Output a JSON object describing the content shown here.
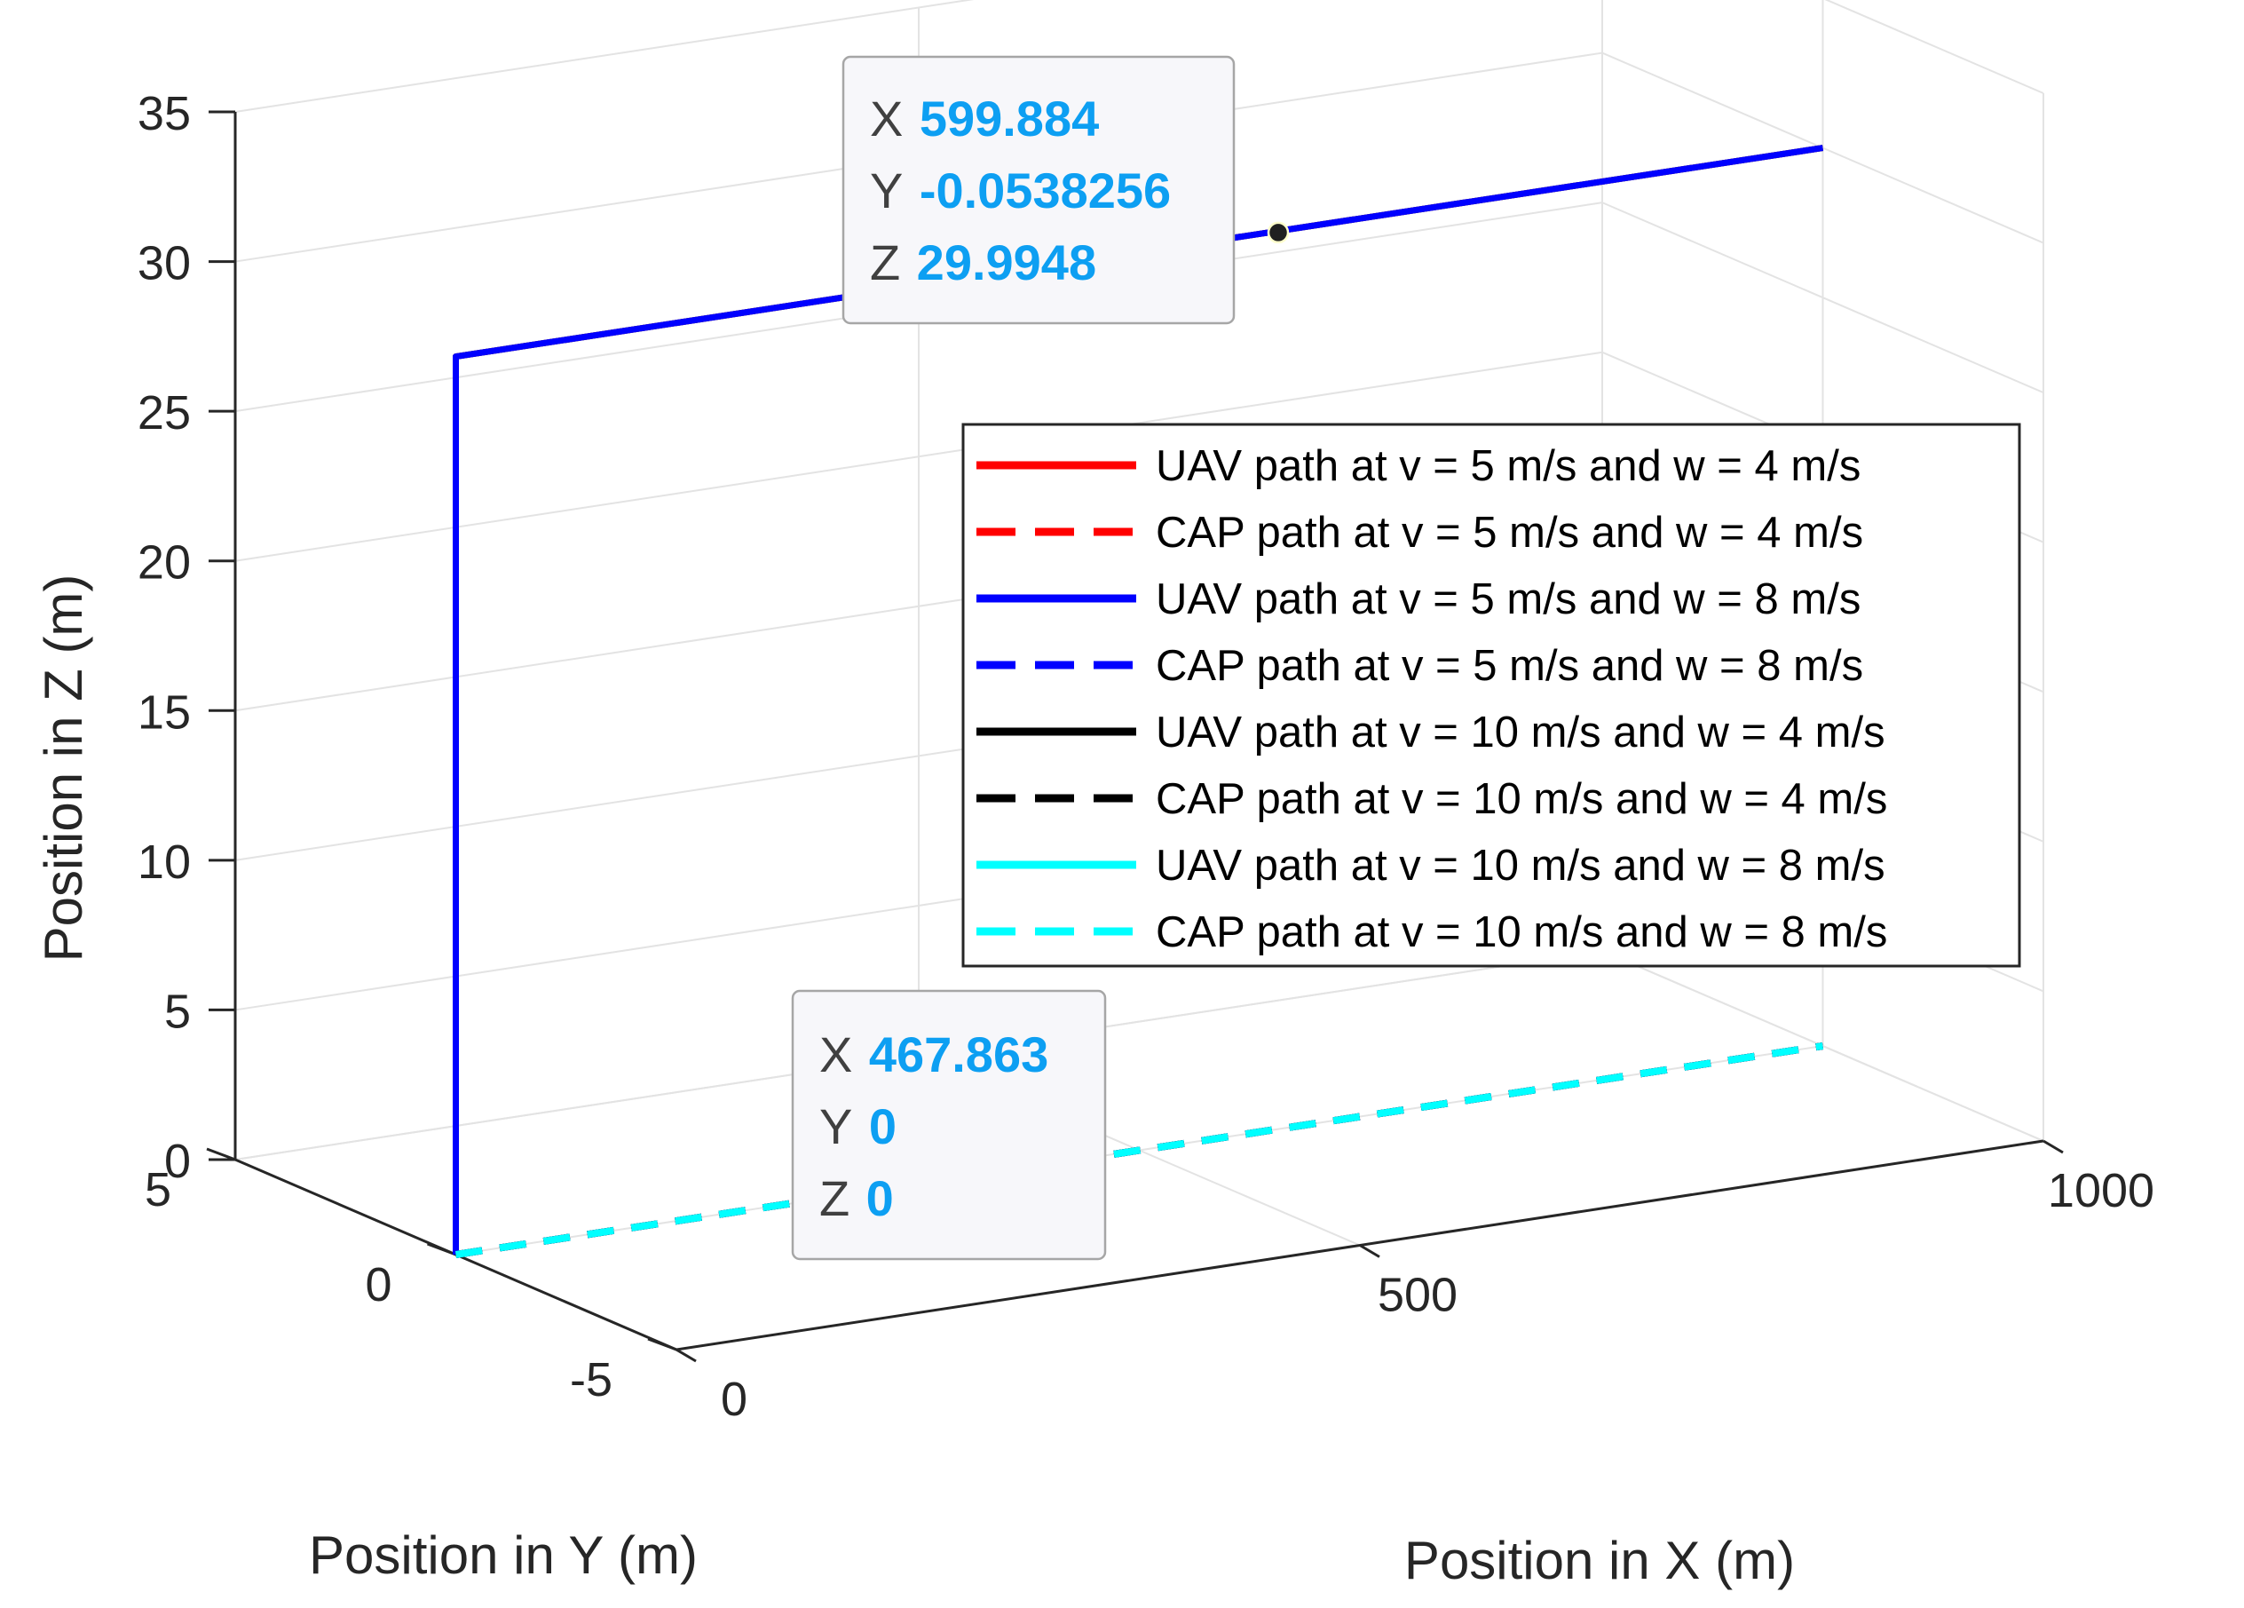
{
  "chart_data": {
    "type": "line3d",
    "xlabel": "Position in X (m)",
    "ylabel": "Position in Y (m)",
    "zlabel": "Position in Z (m)",
    "xlim": [
      0,
      1000
    ],
    "ylim": [
      -5,
      5
    ],
    "zlim": [
      0,
      35
    ],
    "xticks": [
      0,
      500,
      1000
    ],
    "yticks": [
      -5,
      0,
      5
    ],
    "zticks": [
      0,
      5,
      10,
      15,
      20,
      25,
      30,
      35
    ],
    "grid": true,
    "legend_position": "upper-right",
    "series": [
      {
        "name": "UAV path at v = 5 m/s and w = 4 m/s",
        "color": "#ff0000",
        "style": "solid",
        "points": [
          [
            0,
            0,
            0
          ],
          [
            0,
            0,
            30
          ],
          [
            1000,
            0,
            30
          ]
        ]
      },
      {
        "name": "CAP path at v = 5 m/s and w = 4 m/s",
        "color": "#ff0000",
        "style": "dashed",
        "points": [
          [
            0,
            0,
            0
          ],
          [
            1000,
            0,
            0
          ]
        ]
      },
      {
        "name": "UAV path at v = 5 m/s and w = 8 m/s",
        "color": "#0000ff",
        "style": "solid",
        "points": [
          [
            0,
            0,
            0
          ],
          [
            0,
            0,
            30
          ],
          [
            1000,
            0,
            30
          ]
        ]
      },
      {
        "name": "CAP path at v = 5 m/s and w = 8 m/s",
        "color": "#0000ff",
        "style": "dashed",
        "points": [
          [
            0,
            0,
            0
          ],
          [
            1000,
            0,
            0
          ]
        ]
      },
      {
        "name": "UAV path at v = 10 m/s and w = 4 m/s",
        "color": "#000000",
        "style": "solid",
        "points": [
          [
            0,
            0,
            0
          ],
          [
            0,
            0,
            30
          ],
          [
            1000,
            0,
            30
          ]
        ]
      },
      {
        "name": "CAP path at v = 10 m/s and w = 4 m/s",
        "color": "#000000",
        "style": "dashed",
        "points": [
          [
            0,
            0,
            0
          ],
          [
            1000,
            0,
            0
          ]
        ]
      },
      {
        "name": "UAV path at v = 10 m/s and w = 8 m/s",
        "color": "#00ffff",
        "style": "solid",
        "points": [
          [
            0,
            0,
            0
          ],
          [
            0,
            0,
            30
          ],
          [
            1000,
            0,
            30
          ]
        ]
      },
      {
        "name": "CAP path at v = 10 m/s and w = 8 m/s",
        "color": "#00ffff",
        "style": "dashed",
        "points": [
          [
            0,
            0,
            0
          ],
          [
            1000,
            0,
            0
          ]
        ]
      }
    ],
    "datatips": [
      {
        "point": [
          599.884,
          -0.0538256,
          29.9948
        ],
        "label_x": "X",
        "label_y": "Y",
        "label_z": "Z",
        "x": "599.884",
        "y": "-0.0538256",
        "z": "29.9948"
      },
      {
        "point": [
          467.863,
          0,
          0
        ],
        "label_x": "X",
        "label_y": "Y",
        "label_z": "Z",
        "x": "467.863",
        "y": "0",
        "z": "0"
      }
    ]
  }
}
